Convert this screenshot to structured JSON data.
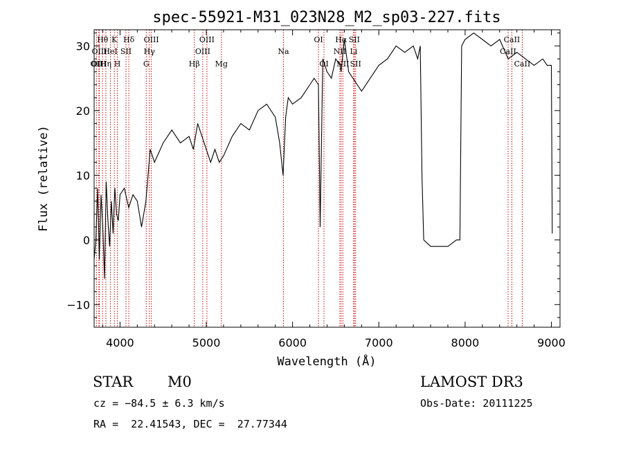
{
  "chart_data": {
    "type": "line",
    "title": "spec-55921-M31_023N28_M2_sp03-227.fits",
    "xlabel": "Wavelength (Å)",
    "ylabel": "Flux (relative)",
    "xlim": [
      3700,
      9100
    ],
    "ylim": [
      -13.5,
      32.5
    ],
    "xticks": [
      4000,
      5000,
      6000,
      7000,
      8000,
      9000
    ],
    "yticks": [
      -10,
      0,
      10,
      20,
      30
    ],
    "xtick_labels": [
      "4000",
      "5000",
      "6000",
      "7000",
      "8000",
      "9000"
    ],
    "ytick_labels": [
      "−10",
      "0",
      "10",
      "20",
      "30"
    ],
    "series": [
      {
        "name": "flux",
        "x": [
          3700,
          3720,
          3740,
          3760,
          3780,
          3800,
          3820,
          3840,
          3860,
          3880,
          3900,
          3920,
          3940,
          3960,
          3980,
          4000,
          4050,
          4100,
          4150,
          4200,
          4250,
          4300,
          4350,
          4400,
          4500,
          4600,
          4700,
          4800,
          4850,
          4900,
          4950,
          5000,
          5050,
          5100,
          5150,
          5200,
          5300,
          5400,
          5500,
          5600,
          5700,
          5800,
          5850,
          5890,
          5920,
          5950,
          6000,
          6100,
          6200,
          6250,
          6300,
          6320,
          6350,
          6400,
          6450,
          6500,
          6550,
          6563,
          6600,
          6650,
          6700,
          6750,
          6800,
          6900,
          7000,
          7100,
          7200,
          7300,
          7400,
          7450,
          7480,
          7500,
          7520,
          7600,
          7700,
          7800,
          7900,
          7940,
          7960,
          8000,
          8100,
          8200,
          8300,
          8400,
          8500,
          8600,
          8700,
          8800,
          8900,
          8950,
          9000,
          9010
        ],
        "y": [
          -3,
          0,
          8,
          -3,
          7,
          2,
          -6,
          9,
          3,
          -1,
          6,
          1,
          8,
          4,
          3,
          7,
          8,
          5,
          7,
          6,
          2,
          6,
          14,
          12,
          15,
          17,
          15,
          16,
          14,
          18,
          16,
          14,
          12,
          14,
          12,
          13,
          16,
          18,
          17,
          20,
          21,
          19,
          15,
          10,
          19,
          22,
          21,
          22,
          24,
          25,
          24,
          2,
          28,
          26,
          25,
          28,
          27,
          26,
          31,
          26,
          25,
          24,
          23,
          25,
          27,
          28,
          30,
          29,
          30,
          28,
          30,
          10,
          0,
          -1,
          -1,
          -1,
          0,
          0,
          30,
          31,
          32,
          31,
          30,
          31,
          28,
          29,
          28,
          27,
          28,
          27,
          27,
          1
        ],
        "color": "#000000"
      }
    ],
    "spectral_lines": [
      {
        "label": "OII",
        "x": 3727,
        "row": 3
      },
      {
        "label": "Hθ",
        "x": 3798,
        "row": 1
      },
      {
        "label": "OIII",
        "x": 3755,
        "row": 3
      },
      {
        "label": "Hη",
        "x": 3836,
        "row": 3
      },
      {
        "label": "OIII",
        "x": 3760,
        "row": 2
      },
      {
        "label": "HeI",
        "x": 3889,
        "row": 2
      },
      {
        "label": "K",
        "x": 3934,
        "row": 1
      },
      {
        "label": "H",
        "x": 3969,
        "row": 3
      },
      {
        "label": "SII",
        "x": 4069,
        "row": 2
      },
      {
        "label": "Hδ",
        "x": 4102,
        "row": 1
      },
      {
        "label": "G",
        "x": 4304,
        "row": 3
      },
      {
        "label": "Hγ",
        "x": 4340,
        "row": 2
      },
      {
        "label": "OIII",
        "x": 4363,
        "row": 1
      },
      {
        "label": "Hβ",
        "x": 4861,
        "row": 3
      },
      {
        "label": "OIII",
        "x": 4959,
        "row": 2
      },
      {
        "label": "OIII",
        "x": 5007,
        "row": 1
      },
      {
        "label": "Mg",
        "x": 5175,
        "row": 3
      },
      {
        "label": "Na",
        "x": 5894,
        "row": 2
      },
      {
        "label": "OI",
        "x": 6300,
        "row": 1
      },
      {
        "label": "OI",
        "x": 6364,
        "row": 3
      },
      {
        "label": "NII",
        "x": 6548,
        "row": 2
      },
      {
        "label": "Hα",
        "x": 6563,
        "row": 1
      },
      {
        "label": "NII",
        "x": 6583,
        "row": 3
      },
      {
        "label": "Li",
        "x": 6708,
        "row": 2
      },
      {
        "label": "SII",
        "x": 6716,
        "row": 1
      },
      {
        "label": "SII",
        "x": 6731,
        "row": 3
      },
      {
        "label": "CaII",
        "x": 8498,
        "row": 2
      },
      {
        "label": "CaII",
        "x": 8542,
        "row": 1
      },
      {
        "label": "CaII",
        "x": 8662,
        "row": 3
      }
    ]
  },
  "info": {
    "class_label": "STAR",
    "subclass": "M0",
    "survey": "LAMOST DR3",
    "cz": "cz = −84.5 ± 6.3 km/s",
    "obs_date": "Obs-Date: 20111225",
    "radec": "RA =  22.41543, DEC =  27.77344"
  }
}
